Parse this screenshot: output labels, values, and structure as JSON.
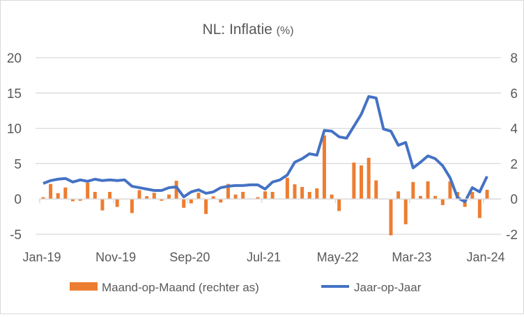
{
  "chart_data": {
    "type": "bar+line",
    "title": "NL: Inflatie",
    "title_unit": "(%)",
    "x": [
      "Jan-19",
      "Feb-19",
      "Mar-19",
      "Apr-19",
      "May-19",
      "Jun-19",
      "Jul-19",
      "Aug-19",
      "Sep-19",
      "Oct-19",
      "Nov-19",
      "Dec-19",
      "Jan-20",
      "Feb-20",
      "Mar-20",
      "Apr-20",
      "May-20",
      "Jun-20",
      "Jul-20",
      "Aug-20",
      "Sep-20",
      "Oct-20",
      "Nov-20",
      "Dec-20",
      "Jan-21",
      "Feb-21",
      "Mar-21",
      "Apr-21",
      "May-21",
      "Jun-21",
      "Jul-21",
      "Aug-21",
      "Sep-21",
      "Oct-21",
      "Nov-21",
      "Dec-21",
      "Jan-22",
      "Feb-22",
      "Mar-22",
      "Apr-22",
      "May-22",
      "Jun-22",
      "Jul-22",
      "Aug-22",
      "Sep-22",
      "Oct-22",
      "Nov-22",
      "Dec-22",
      "Jan-23",
      "Feb-23",
      "Mar-23",
      "Apr-23",
      "May-23",
      "Jun-23",
      "Jul-23",
      "Aug-23",
      "Sep-23",
      "Oct-23",
      "Nov-23",
      "Dec-23",
      "Jan-24"
    ],
    "x_tick_labels": [
      "Jan-19",
      "Nov-19",
      "Sep-20",
      "Jul-21",
      "May-22",
      "Mar-23",
      "Jan-24"
    ],
    "left_axis": {
      "ticks": [
        "20",
        "15",
        "10",
        "5",
        "0",
        "-5"
      ],
      "range": [
        -5,
        20
      ]
    },
    "right_axis": {
      "ticks": [
        "8",
        "6",
        "4",
        "2",
        "0",
        "-2"
      ],
      "range": [
        -2,
        8
      ]
    },
    "grid": true,
    "legend_position": "bottom",
    "series": [
      {
        "name": "Maand-op-Maand (rechter as)",
        "type": "bar",
        "axis": "right",
        "color": "#ED7D31",
        "values": [
          0.1,
          0.85,
          0.33,
          0.65,
          -0.13,
          -0.1,
          0.92,
          0.4,
          -0.65,
          0.4,
          -0.45,
          0.0,
          -0.8,
          0.5,
          0.16,
          0.35,
          -0.1,
          0.25,
          1.03,
          -0.5,
          -0.25,
          0.35,
          -0.85,
          0.15,
          -0.2,
          0.85,
          0.25,
          0.4,
          0.03,
          0.1,
          0.43,
          0.4,
          0.0,
          1.2,
          0.83,
          0.68,
          0.4,
          0.6,
          3.6,
          0.25,
          -0.68,
          0.0,
          2.06,
          1.9,
          2.33,
          1.05,
          0.0,
          -2.06,
          0.43,
          -1.43,
          0.96,
          0.17,
          1.0,
          0.17,
          -0.35,
          1.0,
          0.4,
          -0.45,
          0.4,
          -1.08,
          0.52
        ]
      },
      {
        "name": "Jaar-op-Jaar",
        "type": "line",
        "axis": "left",
        "color": "#4472C4",
        "values": [
          2.2,
          2.6,
          2.8,
          2.9,
          2.4,
          2.7,
          2.5,
          2.8,
          2.6,
          2.7,
          2.6,
          2.7,
          1.8,
          1.6,
          1.4,
          1.2,
          1.2,
          1.6,
          1.7,
          0.3,
          1.0,
          1.3,
          0.8,
          1.0,
          1.6,
          1.8,
          1.9,
          1.9,
          2.0,
          2.0,
          1.4,
          2.4,
          2.7,
          3.4,
          5.2,
          5.7,
          6.4,
          6.2,
          9.7,
          9.6,
          8.8,
          8.6,
          10.3,
          12.0,
          14.5,
          14.3,
          9.9,
          9.6,
          7.6,
          8.0,
          4.4,
          5.2,
          6.1,
          5.7,
          4.7,
          3.0,
          0.2,
          -0.4,
          1.6,
          1.0,
          3.2
        ]
      }
    ]
  }
}
